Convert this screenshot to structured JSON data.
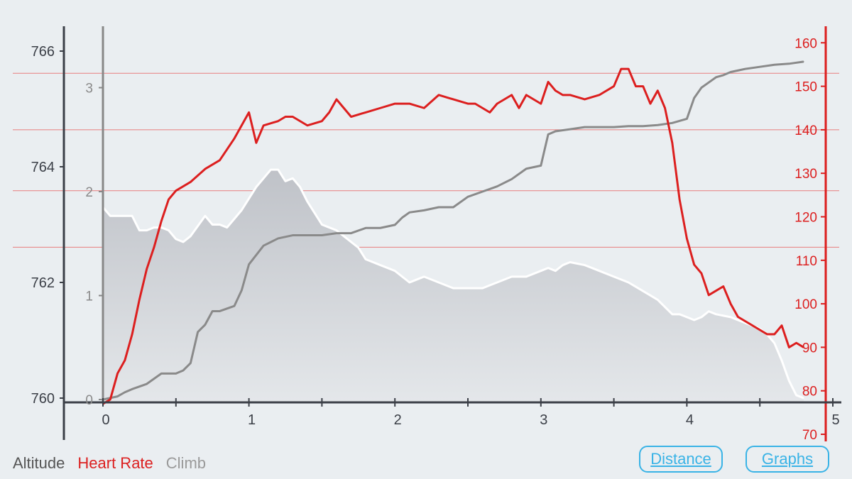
{
  "chart_data": {
    "type": "line",
    "x_axis": {
      "ticks": [
        "0",
        "1",
        "2",
        "3",
        "4",
        "5"
      ],
      "range": [
        0,
        5
      ]
    },
    "y_axes": {
      "altitude": {
        "ticks": [
          "760",
          "762",
          "764",
          "766"
        ],
        "range": [
          759.6,
          766.6
        ]
      },
      "climb": {
        "ticks": [
          "0",
          "1",
          "2",
          "3"
        ],
        "range": [
          -0.22,
          3.66
        ]
      },
      "heart_rate": {
        "ticks": [
          "70",
          "80",
          "90",
          "100",
          "110",
          "120",
          "130",
          "140",
          "150",
          "160"
        ],
        "range": [
          69,
          162
        ]
      }
    },
    "series": [
      {
        "name": "Altitude",
        "axis": "altitude",
        "x": [
          0,
          0.05,
          0.1,
          0.15,
          0.2,
          0.25,
          0.3,
          0.35,
          0.4,
          0.45,
          0.5,
          0.55,
          0.6,
          0.7,
          0.75,
          0.8,
          0.85,
          0.9,
          0.95,
          1.0,
          1.05,
          1.1,
          1.15,
          1.2,
          1.25,
          1.3,
          1.35,
          1.4,
          1.45,
          1.5,
          1.55,
          1.6,
          1.7,
          1.75,
          1.8,
          1.9,
          2.0,
          2.1,
          2.15,
          2.2,
          2.3,
          2.4,
          2.5,
          2.6,
          2.7,
          2.8,
          2.9,
          3.0,
          3.05,
          3.1,
          3.15,
          3.2,
          3.3,
          3.4,
          3.5,
          3.6,
          3.7,
          3.8,
          3.9,
          3.95,
          4.0,
          4.05,
          4.1,
          4.15,
          4.2,
          4.3,
          4.4,
          4.5,
          4.55,
          4.6,
          4.65,
          4.7,
          4.75,
          4.8
        ],
        "values": [
          763.3,
          763.15,
          763.15,
          763.15,
          763.15,
          762.9,
          762.9,
          762.95,
          762.95,
          762.9,
          762.75,
          762.7,
          762.8,
          763.15,
          763.0,
          763.0,
          762.95,
          763.1,
          763.25,
          763.45,
          763.65,
          763.8,
          763.95,
          763.95,
          763.75,
          763.8,
          763.65,
          763.4,
          763.2,
          763.0,
          762.95,
          762.9,
          762.7,
          762.6,
          762.4,
          762.3,
          762.2,
          762.0,
          762.05,
          762.1,
          762.0,
          761.9,
          761.9,
          761.9,
          762.0,
          762.1,
          762.1,
          762.2,
          762.25,
          762.2,
          762.3,
          762.35,
          762.3,
          762.2,
          762.1,
          762.0,
          761.85,
          761.7,
          761.45,
          761.45,
          761.4,
          761.35,
          761.4,
          761.5,
          761.45,
          761.4,
          761.3,
          761.2,
          761.1,
          760.95,
          760.65,
          760.3,
          760.05,
          760.0
        ]
      },
      {
        "name": "Heart Rate",
        "axis": "heart_rate",
        "x": [
          0,
          0.05,
          0.1,
          0.15,
          0.2,
          0.25,
          0.3,
          0.35,
          0.4,
          0.45,
          0.5,
          0.6,
          0.7,
          0.8,
          0.9,
          0.95,
          1.0,
          1.05,
          1.1,
          1.2,
          1.25,
          1.3,
          1.4,
          1.5,
          1.55,
          1.6,
          1.7,
          1.8,
          1.9,
          2.0,
          2.1,
          2.2,
          2.3,
          2.4,
          2.5,
          2.55,
          2.6,
          2.65,
          2.7,
          2.8,
          2.85,
          2.9,
          3.0,
          3.05,
          3.1,
          3.15,
          3.2,
          3.3,
          3.4,
          3.5,
          3.55,
          3.6,
          3.65,
          3.7,
          3.75,
          3.8,
          3.85,
          3.9,
          3.95,
          4.0,
          4.05,
          4.1,
          4.15,
          4.2,
          4.25,
          4.3,
          4.35,
          4.4,
          4.45,
          4.5,
          4.55,
          4.6,
          4.65,
          4.7,
          4.75,
          4.8
        ],
        "values": [
          77,
          78,
          84,
          87,
          93,
          101,
          108,
          113,
          119,
          124,
          126,
          128,
          131,
          133,
          138,
          141,
          144,
          137,
          141,
          142,
          143,
          143,
          141,
          142,
          144,
          147,
          143,
          144,
          145,
          146,
          146,
          145,
          148,
          147,
          146,
          146,
          145,
          144,
          146,
          148,
          145,
          148,
          146,
          151,
          149,
          148,
          148,
          147,
          148,
          150,
          154,
          154,
          150,
          150,
          146,
          149,
          145,
          137,
          124,
          115,
          109,
          107,
          102,
          103,
          104,
          100,
          97,
          96,
          95,
          94,
          93,
          93,
          95,
          90,
          91,
          90
        ]
      },
      {
        "name": "Climb",
        "axis": "climb",
        "x": [
          0,
          0.1,
          0.15,
          0.2,
          0.3,
          0.4,
          0.5,
          0.55,
          0.6,
          0.65,
          0.7,
          0.75,
          0.8,
          0.9,
          0.95,
          1.0,
          1.1,
          1.2,
          1.3,
          1.4,
          1.5,
          1.6,
          1.7,
          1.8,
          1.9,
          2.0,
          2.05,
          2.1,
          2.2,
          2.3,
          2.4,
          2.5,
          2.6,
          2.7,
          2.8,
          2.9,
          3.0,
          3.05,
          3.1,
          3.2,
          3.3,
          3.4,
          3.5,
          3.6,
          3.7,
          3.8,
          3.9,
          4.0,
          4.05,
          4.1,
          4.15,
          4.2,
          4.25,
          4.3,
          4.4,
          4.5,
          4.6,
          4.7,
          4.8
        ],
        "values": [
          0.0,
          0.03,
          0.07,
          0.1,
          0.15,
          0.25,
          0.25,
          0.28,
          0.35,
          0.65,
          0.72,
          0.85,
          0.85,
          0.9,
          1.05,
          1.3,
          1.48,
          1.55,
          1.58,
          1.58,
          1.58,
          1.6,
          1.6,
          1.65,
          1.65,
          1.68,
          1.75,
          1.8,
          1.82,
          1.85,
          1.85,
          1.95,
          2.0,
          2.05,
          2.12,
          2.22,
          2.25,
          2.55,
          2.58,
          2.6,
          2.62,
          2.62,
          2.62,
          2.63,
          2.63,
          2.64,
          2.66,
          2.7,
          2.9,
          3.0,
          3.05,
          3.1,
          3.12,
          3.15,
          3.18,
          3.2,
          3.22,
          3.23,
          3.25
        ]
      }
    ],
    "legend": [
      "Altitude",
      "Heart Rate",
      "Climb"
    ],
    "colors": {
      "altitude": "#ffffff",
      "heart_rate": "#dc1f1f",
      "climb": "#8a8a8a",
      "area": "#cfd2d7",
      "background": "#eaeef1",
      "axis": "#3b3f47"
    },
    "grid": "horizontal heart-rate lines"
  },
  "buttons": {
    "distance": "Distance",
    "graphs": "Graphs"
  },
  "legend_labels": {
    "altitude": "Altitude",
    "heart_rate": "Heart Rate",
    "climb": "Climb"
  }
}
